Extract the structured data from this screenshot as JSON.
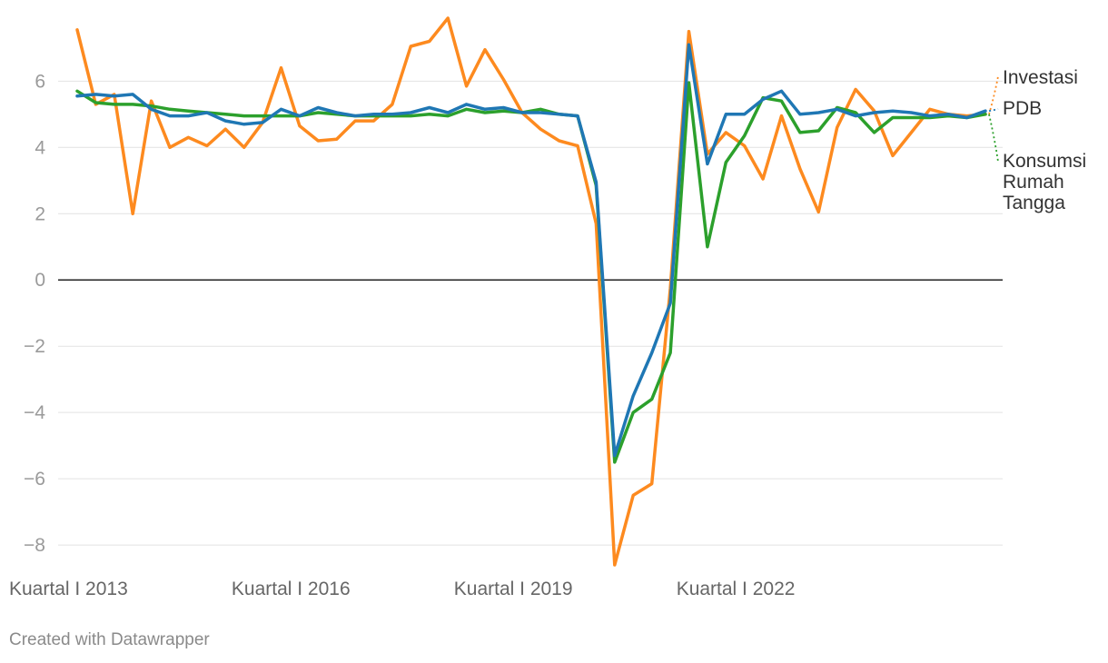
{
  "chart_data": {
    "type": "line",
    "x": [
      "Q1 2013",
      "Q2 2013",
      "Q3 2013",
      "Q4 2013",
      "Q1 2014",
      "Q2 2014",
      "Q3 2014",
      "Q4 2014",
      "Q1 2015",
      "Q2 2015",
      "Q3 2015",
      "Q4 2015",
      "Q1 2016",
      "Q2 2016",
      "Q3 2016",
      "Q4 2016",
      "Q1 2017",
      "Q2 2017",
      "Q3 2017",
      "Q4 2017",
      "Q1 2018",
      "Q2 2018",
      "Q3 2018",
      "Q4 2018",
      "Q1 2019",
      "Q2 2019",
      "Q3 2019",
      "Q4 2019",
      "Q1 2020",
      "Q2 2020",
      "Q3 2020",
      "Q4 2020",
      "Q1 2021",
      "Q2 2021",
      "Q3 2021",
      "Q4 2021",
      "Q1 2022",
      "Q2 2022",
      "Q3 2022",
      "Q4 2022",
      "Q1 2023",
      "Q2 2023",
      "Q3 2023",
      "Q4 2023",
      "Q1 2024",
      "Q2 2024",
      "Q3 2024",
      "Q4 2024",
      "Q1 2025",
      "Q2 2025"
    ],
    "x_tick_labels": [
      {
        "index": 0,
        "label": "Kuartal I 2013"
      },
      {
        "index": 12,
        "label": "Kuartal I 2016"
      },
      {
        "index": 24,
        "label": "Kuartal I 2019"
      },
      {
        "index": 36,
        "label": "Kuartal I 2022"
      }
    ],
    "ylim": [
      -8.6,
      7.9
    ],
    "y_ticks": [
      6,
      4,
      2,
      0,
      -2,
      -4,
      -6,
      -8
    ],
    "y_tick_labels": [
      "6",
      "4",
      "2",
      "0",
      "−2",
      "−4",
      "−6",
      "−8"
    ],
    "grid": true,
    "legend_placement": "right",
    "series": [
      {
        "name": "Investasi",
        "color": "#fd8a1f",
        "values": [
          7.55,
          5.3,
          5.6,
          2.0,
          5.4,
          4.0,
          4.3,
          4.05,
          4.55,
          4.0,
          4.75,
          6.4,
          4.65,
          4.2,
          4.25,
          4.8,
          4.8,
          5.3,
          7.05,
          7.2,
          7.9,
          5.85,
          6.95,
          6.05,
          5.05,
          4.55,
          4.2,
          4.05,
          1.7,
          -8.6,
          -6.5,
          -6.15,
          -0.25,
          7.5,
          3.8,
          4.45,
          4.05,
          3.05,
          4.95,
          3.35,
          2.05,
          4.6,
          5.75,
          5.1,
          3.75,
          4.45,
          5.15,
          5.0,
          4.95,
          5.0
        ]
      },
      {
        "name": "PDB",
        "color": "#1f77b4",
        "values": [
          5.55,
          5.6,
          5.55,
          5.6,
          5.15,
          4.95,
          4.95,
          5.05,
          4.8,
          4.7,
          4.75,
          5.15,
          4.95,
          5.2,
          5.05,
          4.95,
          5.0,
          5.0,
          5.05,
          5.2,
          5.05,
          5.3,
          5.15,
          5.2,
          5.05,
          5.05,
          5.0,
          4.95,
          2.95,
          -5.3,
          -3.5,
          -2.2,
          -0.7,
          7.1,
          3.5,
          5.0,
          5.0,
          5.45,
          5.7,
          5.0,
          5.05,
          5.15,
          4.95,
          5.05,
          5.1,
          5.05,
          4.95,
          5.0,
          4.9,
          5.1
        ]
      },
      {
        "name": "Konsumsi Rumah Tangga",
        "color": "#2ca02c",
        "values": [
          5.7,
          5.35,
          5.3,
          5.3,
          5.25,
          5.15,
          5.1,
          5.05,
          5.0,
          4.95,
          4.95,
          4.95,
          4.95,
          5.05,
          5.0,
          4.95,
          4.95,
          4.95,
          4.95,
          5.0,
          4.95,
          5.15,
          5.05,
          5.1,
          5.05,
          5.15,
          5.0,
          4.95,
          2.85,
          -5.5,
          -4.0,
          -3.6,
          -2.2,
          5.95,
          1.0,
          3.55,
          4.35,
          5.5,
          5.4,
          4.45,
          4.5,
          5.2,
          5.05,
          4.45,
          4.9,
          4.9,
          4.9,
          4.95,
          4.9,
          5.0
        ]
      }
    ],
    "legend": [
      {
        "lines": [
          "Investasi"
        ],
        "color": "#fd8a1f"
      },
      {
        "lines": [
          "PDB"
        ],
        "color": "#1f77b4"
      },
      {
        "lines": [
          "Konsumsi",
          "Rumah",
          "Tangga"
        ],
        "color": "#2ca02c"
      }
    ]
  },
  "footer": {
    "credit": "Created with Datawrapper"
  }
}
